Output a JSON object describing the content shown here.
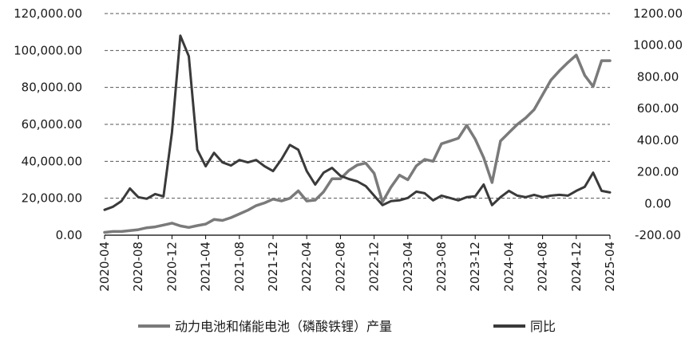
{
  "chart_data": {
    "type": "line",
    "x": [
      "2020-04",
      "2020-05",
      "2020-06",
      "2020-07",
      "2020-08",
      "2020-09",
      "2020-10",
      "2020-11",
      "2020-12",
      "2021-01",
      "2021-02",
      "2021-03",
      "2021-04",
      "2021-05",
      "2021-06",
      "2021-07",
      "2021-08",
      "2021-09",
      "2021-10",
      "2021-11",
      "2021-12",
      "2022-01",
      "2022-02",
      "2022-03",
      "2022-04",
      "2022-05",
      "2022-06",
      "2022-07",
      "2022-08",
      "2022-09",
      "2022-10",
      "2022-11",
      "2022-12",
      "2023-01",
      "2023-02",
      "2023-03",
      "2023-04",
      "2023-05",
      "2023-06",
      "2023-07",
      "2023-08",
      "2023-09",
      "2023-10",
      "2023-11",
      "2023-12",
      "2024-01",
      "2024-02",
      "2024-03",
      "2024-04",
      "2024-05",
      "2024-06",
      "2024-07",
      "2024-08",
      "2024-09",
      "2024-10",
      "2024-11",
      "2024-12",
      "2025-01",
      "2025-02",
      "2025-03",
      "2025-04"
    ],
    "x_tick_labels": [
      "2020-04",
      "2020-08",
      "2020-12",
      "2021-04",
      "2021-08",
      "2021-12",
      "2022-04",
      "2022-08",
      "2022-12",
      "2023-04",
      "2023-08",
      "2023-12",
      "2024-04",
      "2024-08",
      "2024-12",
      "2025-04"
    ],
    "y_left": {
      "min": 0,
      "max": 120000,
      "ticks": [
        "0.00",
        "20,000.00",
        "40,000.00",
        "60,000.00",
        "80,000.00",
        "100,000.00",
        "120,000.00"
      ]
    },
    "y_right": {
      "min": -200,
      "max": 1200,
      "ticks": [
        "-200.00",
        "0.00",
        "200.00",
        "400.00",
        "600.00",
        "800.00",
        "1000.00",
        "1200.00"
      ]
    },
    "grid": "horizontal-dashed",
    "legend_position": "bottom",
    "series": [
      {
        "name": "动力电池和储能电池（磷酸铁锂）产量",
        "axis": "left",
        "color": "#7a7a7a",
        "values": [
          1500,
          2000,
          2000,
          2500,
          3000,
          4000,
          4500,
          5500,
          6500,
          5000,
          4200,
          5200,
          6000,
          8500,
          8000,
          9500,
          11500,
          13500,
          16000,
          17500,
          19500,
          18500,
          20000,
          24000,
          18500,
          19000,
          23500,
          30500,
          30500,
          35000,
          38000,
          39000,
          33500,
          18000,
          26000,
          32500,
          30000,
          37500,
          41000,
          40000,
          49500,
          51000,
          52500,
          59500,
          52000,
          42000,
          28500,
          51000,
          55500,
          60000,
          63500,
          68000,
          76000,
          84000,
          89000,
          93500,
          97500,
          86500,
          80500,
          94500,
          94500
        ]
      },
      {
        "name": "同比",
        "axis": "right",
        "color": "#3a3a3a",
        "values": [
          -40,
          -20,
          15,
          95,
          40,
          30,
          60,
          45,
          450,
          1060,
          930,
          340,
          235,
          320,
          260,
          240,
          275,
          260,
          275,
          235,
          205,
          280,
          370,
          340,
          205,
          120,
          195,
          225,
          175,
          155,
          140,
          110,
          50,
          -10,
          15,
          20,
          35,
          75,
          65,
          20,
          50,
          35,
          20,
          40,
          45,
          120,
          -10,
          40,
          80,
          50,
          40,
          55,
          40,
          50,
          55,
          50,
          80,
          105,
          195,
          80,
          70
        ]
      }
    ]
  }
}
